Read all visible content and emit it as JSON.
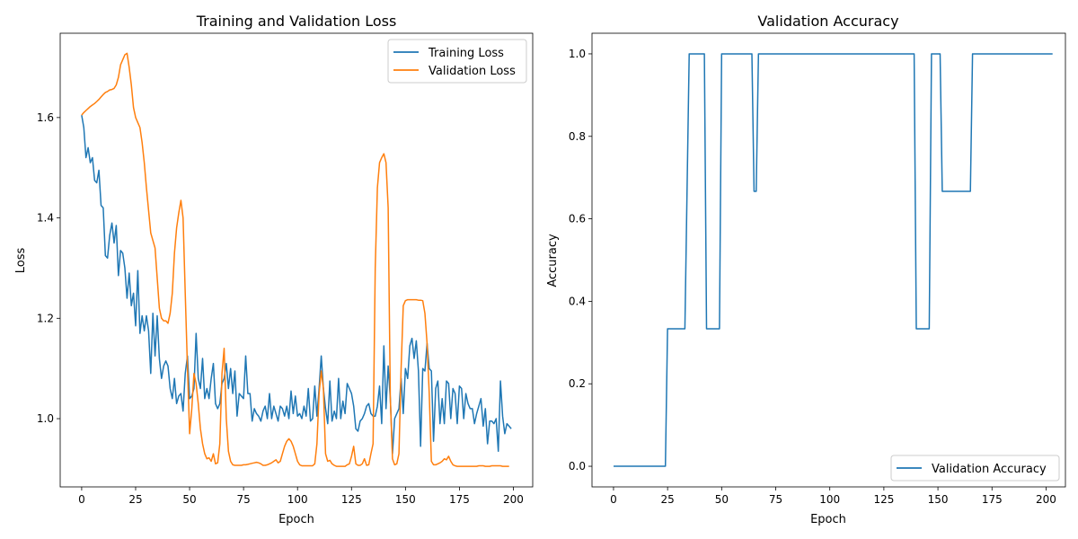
{
  "chart_data": [
    {
      "type": "line",
      "title": "Training and Validation Loss",
      "xlabel": "Epoch",
      "ylabel": "Loss",
      "xlim": [
        -9.95,
        208.95
      ],
      "ylim": [
        0.864,
        1.768
      ],
      "xticks": [
        0,
        25,
        50,
        75,
        100,
        125,
        150,
        175,
        200
      ],
      "yticks": [
        1.0,
        1.2,
        1.4,
        1.6
      ],
      "ytick_format": 1,
      "grid": false,
      "legend": "top-right",
      "series": [
        {
          "name": "Training Loss",
          "color": "#1f77b4",
          "values": [
            1.605,
            1.58,
            1.52,
            1.54,
            1.51,
            1.52,
            1.475,
            1.47,
            1.495,
            1.425,
            1.42,
            1.325,
            1.32,
            1.365,
            1.39,
            1.35,
            1.385,
            1.285,
            1.335,
            1.33,
            1.3,
            1.24,
            1.29,
            1.225,
            1.25,
            1.185,
            1.295,
            1.17,
            1.205,
            1.175,
            1.205,
            1.175,
            1.09,
            1.21,
            1.125,
            1.205,
            1.12,
            1.08,
            1.105,
            1.115,
            1.105,
            1.06,
            1.04,
            1.08,
            1.03,
            1.045,
            1.05,
            1.015,
            1.09,
            1.125,
            1.04,
            1.045,
            1.06,
            1.17,
            1.08,
            1.06,
            1.12,
            1.04,
            1.06,
            1.04,
            1.08,
            1.11,
            1.03,
            1.02,
            1.03,
            1.07,
            1.08,
            1.11,
            1.06,
            1.1,
            1.05,
            1.095,
            1.005,
            1.05,
            1.045,
            1.04,
            1.125,
            1.05,
            1.05,
            0.995,
            1.02,
            1.01,
            1.005,
            0.995,
            1.015,
            1.025,
            1.0,
            1.05,
            1.0,
            1.025,
            1.01,
            0.995,
            1.025,
            1.02,
            1.005,
            1.025,
            1.0,
            1.055,
            1.01,
            1.045,
            1.005,
            1.01,
            1.0,
            1.025,
            1.005,
            1.06,
            0.995,
            1.0,
            1.065,
            1.005,
            1.06,
            1.125,
            1.06,
            1.02,
            0.99,
            1.075,
            0.995,
            1.015,
            1.0,
            1.08,
            1.0,
            1.035,
            1.01,
            1.07,
            1.06,
            1.05,
            1.025,
            0.98,
            0.975,
            0.995,
            1.0,
            1.01,
            1.025,
            1.03,
            1.01,
            1.005,
            1.005,
            1.025,
            1.065,
            0.99,
            1.145,
            1.02,
            1.105,
            1.04,
            0.93,
            1.0,
            1.01,
            1.02,
            1.08,
            1.01,
            1.1,
            1.08,
            1.145,
            1.16,
            1.12,
            1.155,
            1.095,
            0.945,
            1.1,
            1.095,
            1.15,
            1.1,
            1.095,
            0.955,
            1.06,
            1.075,
            0.99,
            1.04,
            0.99,
            1.075,
            1.07,
            1.0,
            1.06,
            1.05,
            0.99,
            1.065,
            1.06,
            1.0,
            1.05,
            1.03,
            1.02,
            1.02,
            0.99,
            1.01,
            1.025,
            1.04,
            0.985,
            1.02,
            0.95,
            0.995,
            0.995,
            0.99,
            1.0,
            0.935,
            1.075,
            1.005,
            0.97,
            0.99,
            0.985,
            0.98
          ]
        },
        {
          "name": "Validation Loss",
          "color": "#ff7f0e",
          "values": [
            1.605,
            1.61,
            1.614,
            1.618,
            1.622,
            1.625,
            1.628,
            1.632,
            1.636,
            1.641,
            1.646,
            1.65,
            1.652,
            1.655,
            1.656,
            1.658,
            1.665,
            1.68,
            1.705,
            1.715,
            1.725,
            1.728,
            1.7,
            1.665,
            1.62,
            1.6,
            1.59,
            1.58,
            1.55,
            1.51,
            1.46,
            1.415,
            1.37,
            1.355,
            1.34,
            1.28,
            1.22,
            1.2,
            1.195,
            1.195,
            1.19,
            1.21,
            1.25,
            1.33,
            1.38,
            1.41,
            1.435,
            1.4,
            1.25,
            1.1,
            0.97,
            1.02,
            1.09,
            1.07,
            1.03,
            0.98,
            0.95,
            0.93,
            0.92,
            0.922,
            0.915,
            0.93,
            0.91,
            0.912,
            0.95,
            1.09,
            1.14,
            1.0,
            0.935,
            0.915,
            0.908,
            0.907,
            0.907,
            0.907,
            0.907,
            0.908,
            0.908,
            0.909,
            0.91,
            0.911,
            0.912,
            0.913,
            0.912,
            0.91,
            0.907,
            0.907,
            0.908,
            0.91,
            0.912,
            0.915,
            0.918,
            0.912,
            0.915,
            0.93,
            0.945,
            0.955,
            0.96,
            0.955,
            0.945,
            0.93,
            0.915,
            0.908,
            0.906,
            0.906,
            0.906,
            0.906,
            0.906,
            0.906,
            0.91,
            0.95,
            1.05,
            1.095,
            1.06,
            0.93,
            0.915,
            0.917,
            0.91,
            0.907,
            0.905,
            0.905,
            0.905,
            0.905,
            0.905,
            0.908,
            0.91,
            0.925,
            0.945,
            0.91,
            0.907,
            0.907,
            0.91,
            0.92,
            0.907,
            0.908,
            0.93,
            0.95,
            1.3,
            1.46,
            1.51,
            1.52,
            1.528,
            1.51,
            1.42,
            1.04,
            0.92,
            0.908,
            0.91,
            0.93,
            1.1,
            1.225,
            1.235,
            1.237,
            1.237,
            1.237,
            1.237,
            1.237,
            1.236,
            1.236,
            1.235,
            1.21,
            1.15,
            1.05,
            0.915,
            0.908,
            0.908,
            0.91,
            0.912,
            0.915,
            0.92,
            0.918,
            0.925,
            0.915,
            0.908,
            0.906,
            0.905,
            0.905,
            0.905,
            0.905,
            0.905,
            0.905,
            0.905,
            0.905,
            0.905,
            0.905,
            0.906,
            0.906,
            0.906,
            0.905,
            0.905,
            0.905,
            0.906,
            0.906,
            0.906,
            0.906,
            0.906,
            0.905,
            0.905,
            0.905,
            0.905
          ]
        }
      ]
    },
    {
      "type": "line",
      "title": "Validation Accuracy",
      "xlabel": "Epoch",
      "ylabel": "Accuracy",
      "xlim": [
        -9.95,
        208.95
      ],
      "ylim": [
        -0.05,
        1.05
      ],
      "xticks": [
        0,
        25,
        50,
        75,
        100,
        125,
        150,
        175,
        200
      ],
      "yticks": [
        0.0,
        0.2,
        0.4,
        0.6,
        0.8,
        1.0
      ],
      "ytick_format": 1,
      "grid": false,
      "legend": "bottom-right",
      "series": [
        {
          "name": "Validation Accuracy",
          "color": "#1f77b4",
          "values": [
            0,
            0,
            0,
            0,
            0,
            0,
            0,
            0,
            0,
            0,
            0,
            0,
            0,
            0,
            0,
            0,
            0,
            0,
            0,
            0,
            0,
            0,
            0,
            0,
            0,
            0.3333,
            0.3333,
            0.3333,
            0.3333,
            0.3333,
            0.3333,
            0.3333,
            0.3333,
            0.3333,
            0.6667,
            1,
            1,
            1,
            1,
            1,
            1,
            1,
            1,
            0.3333,
            0.3333,
            0.3333,
            0.3333,
            0.3333,
            0.3333,
            0.3333,
            1,
            1,
            1,
            1,
            1,
            1,
            1,
            1,
            1,
            1,
            1,
            1,
            1,
            1,
            1,
            0.6667,
            0.6667,
            1,
            1,
            1,
            1,
            1,
            1,
            1,
            1,
            1,
            1,
            1,
            1,
            1,
            1,
            1,
            1,
            1,
            1,
            1,
            1,
            1,
            1,
            1,
            1,
            1,
            1,
            1,
            1,
            1,
            1,
            1,
            1,
            1,
            1,
            1,
            1,
            1,
            1,
            1,
            1,
            1,
            1,
            1,
            1,
            1,
            1,
            1,
            1,
            1,
            1,
            1,
            1,
            1,
            1,
            1,
            1,
            1,
            1,
            1,
            1,
            1,
            1,
            1,
            1,
            1,
            1,
            1,
            1,
            1,
            1,
            1,
            1,
            1,
            0.3333,
            0.3333,
            0.3333,
            0.3333,
            0.3333,
            0.3333,
            0.3333,
            1,
            1,
            1,
            1,
            1,
            0.6667,
            0.6667,
            0.6667,
            0.6667,
            0.6667,
            0.6667,
            0.6667,
            0.6667,
            0.6667,
            0.6667,
            0.6667,
            0.6667,
            0.6667,
            0.6667,
            1,
            1,
            1,
            1,
            1,
            1,
            1,
            1,
            1,
            1,
            1,
            1,
            1,
            1,
            1,
            1,
            1,
            1,
            1,
            1,
            1,
            1,
            1,
            1,
            1,
            1,
            1,
            1,
            1,
            1,
            1,
            1,
            1,
            1,
            1,
            1,
            1,
            1
          ]
        }
      ]
    }
  ]
}
